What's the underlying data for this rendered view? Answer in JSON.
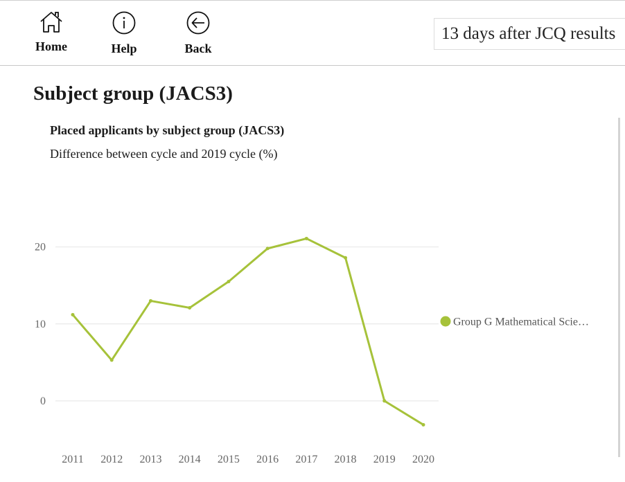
{
  "nav": {
    "home_label": "Home",
    "help_label": "Help",
    "back_label": "Back"
  },
  "cycle_selector": {
    "value": "13 days after JCQ results"
  },
  "page_title": "Subject group (JACS3)",
  "chart_data": {
    "type": "line",
    "title": "Placed applicants by subject group (JACS3)",
    "subtitle": "Difference between cycle and 2019 cycle (%)",
    "xlabel": "",
    "ylabel": "",
    "categories": [
      "2011",
      "2012",
      "2013",
      "2014",
      "2015",
      "2016",
      "2017",
      "2018",
      "2019",
      "2020"
    ],
    "series": [
      {
        "name": "Group G Mathematical Scie…",
        "color": "#a6c23a",
        "values": [
          11.2,
          5.3,
          13.0,
          12.1,
          15.5,
          19.8,
          21.1,
          18.6,
          0.0,
          -3.1
        ]
      }
    ],
    "yticks": [
      0,
      10,
      20
    ],
    "ylim": [
      -5.5,
      26
    ],
    "grid": true,
    "legend_position": "right"
  }
}
